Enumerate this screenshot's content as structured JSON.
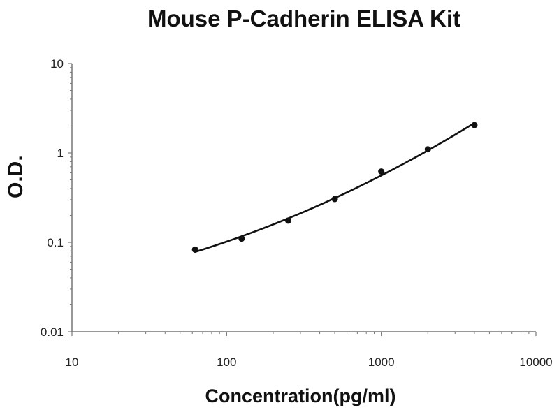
{
  "chart_data": {
    "type": "scatter",
    "title": "Mouse P-Cadherin ELISA Kit",
    "xlabel": "Concentration(pg/ml)",
    "ylabel": "O.D.",
    "x_scale": "log",
    "y_scale": "log",
    "xlim": [
      10,
      10000
    ],
    "ylim": [
      0.01,
      10
    ],
    "x_ticks": [
      "10",
      "100",
      "1000",
      "10000"
    ],
    "y_ticks": [
      "0.01",
      "0.1",
      "1",
      "10"
    ],
    "grid": false,
    "series": [
      {
        "x": [
          62.5,
          125,
          250,
          500,
          1000,
          2000,
          4000
        ],
        "y": [
          0.083,
          0.11,
          0.175,
          0.305,
          0.62,
          1.1,
          2.05
        ],
        "marker": "circle",
        "fit_line": true
      }
    ],
    "colors": {
      "line": "#111111",
      "marker": "#111111",
      "axis": "#777777"
    }
  }
}
